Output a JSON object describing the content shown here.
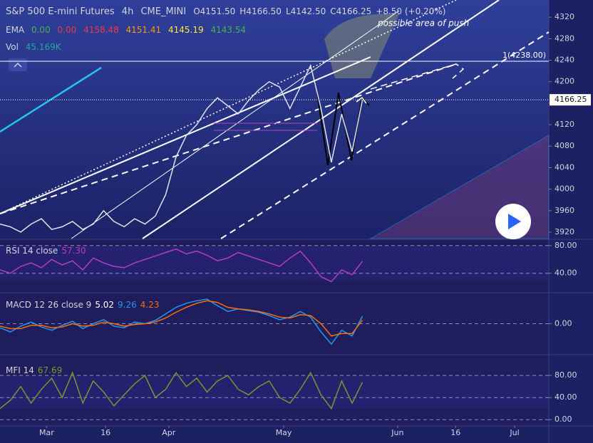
{
  "chart_data": [
    {
      "type": "line",
      "title": "S&P 500 E-mini Futures",
      "interval": "4h",
      "exchange": "CME_MINI",
      "ohlc": [
        "O4151.50",
        "H4166.50",
        "L4142.50",
        "C4166.25"
      ],
      "change": "+8.50 (+0.20%)",
      "ema_label": "EMA",
      "ema_values": [
        "0.00",
        "0.00",
        "4158.48",
        "4151.41",
        "4145.19",
        "4143.54"
      ],
      "vol_label": "Vol",
      "vol_value": "45.169K",
      "annotation": "possible area of push",
      "level": {
        "value": 4238,
        "label": "1(4238.00)"
      },
      "last_price": 4166.25,
      "xlim": [
        0,
        53
      ],
      "ylim": [
        3908,
        4352
      ],
      "xticks": [
        {
          "value": 4.5,
          "label": "Mar"
        },
        {
          "value": 10.2,
          "label": "16"
        },
        {
          "value": 16.3,
          "label": "Apr"
        },
        {
          "value": 27.4,
          "label": "May"
        },
        {
          "value": 38.4,
          "label": "Jun"
        },
        {
          "value": 44,
          "label": "16"
        },
        {
          "value": 49.7,
          "label": "Jul"
        }
      ],
      "yticks": [
        3920,
        3960,
        4000,
        4040,
        4080,
        4120,
        4160,
        4200,
        4240,
        4280,
        4320
      ],
      "grid": false,
      "x": [
        0,
        1,
        2,
        3,
        4,
        5,
        6,
        7,
        8,
        9,
        10,
        11,
        12,
        13,
        14,
        15,
        16,
        17,
        18,
        19,
        20,
        21,
        22,
        23,
        24,
        25,
        26,
        27,
        28,
        29,
        30,
        31,
        32,
        33,
        34,
        35
      ],
      "series": [
        {
          "color": "#e0e3eb",
          "values": [
            3935,
            3930,
            3920,
            3935,
            3945,
            3925,
            3930,
            3940,
            3925,
            3935,
            3960,
            3940,
            3930,
            3945,
            3935,
            3950,
            3990,
            4060,
            4100,
            4120,
            4150,
            4170,
            4155,
            4140,
            4165,
            4185,
            4200,
            4190,
            4150,
            4190,
            4230,
            4150,
            4050,
            4140,
            4070,
            4166.25
          ]
        }
      ]
    },
    {
      "type": "line",
      "title": "RSI 14 close",
      "value_text": "57.30",
      "xlim": [
        0,
        53
      ],
      "ylim": [
        13,
        88
      ],
      "grid": true,
      "yticks": [
        {
          "value": 80,
          "label": "80.00"
        },
        {
          "value": 40,
          "label": "40.00"
        }
      ],
      "x": [
        0,
        1,
        2,
        3,
        4,
        5,
        6,
        7,
        8,
        9,
        10,
        11,
        12,
        13,
        14,
        15,
        16,
        17,
        18,
        19,
        20,
        21,
        22,
        23,
        24,
        25,
        26,
        27,
        28,
        29,
        30,
        31,
        32,
        33,
        34,
        35
      ],
      "series": [
        {
          "color": "#b43dbb",
          "values": [
            45,
            40,
            50,
            55,
            48,
            60,
            52,
            58,
            45,
            62,
            55,
            50,
            48,
            55,
            60,
            65,
            70,
            75,
            68,
            72,
            66,
            58,
            62,
            70,
            65,
            60,
            55,
            50,
            62,
            72,
            55,
            35,
            28,
            45,
            38,
            57.3
          ]
        }
      ]
    },
    {
      "type": "line",
      "title": "MACD 12 26 close 9",
      "value_texts": [
        "5.02",
        "9.26",
        "4.23"
      ],
      "xlim": [
        0,
        53
      ],
      "ylim": [
        -37,
        37
      ],
      "grid": true,
      "yticks": [
        {
          "value": 0,
          "label": "0.00"
        }
      ],
      "x": [
        0,
        1,
        2,
        3,
        4,
        5,
        6,
        7,
        8,
        9,
        10,
        11,
        12,
        13,
        14,
        15,
        16,
        17,
        18,
        19,
        20,
        21,
        22,
        23,
        24,
        25,
        26,
        27,
        28,
        29,
        30,
        31,
        32,
        33,
        34,
        35
      ],
      "series": [
        {
          "color": "#2196f3",
          "values": [
            -5,
            -10,
            -3,
            2,
            -4,
            -8,
            -2,
            3,
            -6,
            0,
            5,
            -3,
            -5,
            2,
            0,
            4,
            12,
            20,
            25,
            28,
            30,
            22,
            15,
            18,
            16,
            14,
            10,
            5,
            8,
            15,
            8,
            -10,
            -25,
            -8,
            -15,
            9.26
          ]
        },
        {
          "color": "#ff6d00",
          "values": [
            -3,
            -6,
            -6,
            -2,
            -2,
            -5,
            -4,
            0,
            -3,
            -2,
            2,
            0,
            -3,
            -1,
            0,
            2,
            7,
            14,
            20,
            25,
            28,
            26,
            20,
            18,
            17,
            15,
            12,
            8,
            7,
            11,
            10,
            0,
            -15,
            -12,
            -12,
            4.23
          ]
        }
      ]
    },
    {
      "type": "line",
      "title": "MFI 14",
      "value_text": "67.69",
      "xlim": [
        0,
        53
      ],
      "ylim": [
        -10,
        115
      ],
      "grid": true,
      "yticks": [
        {
          "value": 80,
          "label": "80.00"
        },
        {
          "value": 40,
          "label": "40.00"
        },
        {
          "value": 0,
          "label": "0.00"
        }
      ],
      "x": [
        0,
        1,
        2,
        3,
        4,
        5,
        6,
        7,
        8,
        9,
        10,
        11,
        12,
        13,
        14,
        15,
        16,
        17,
        18,
        19,
        20,
        21,
        22,
        23,
        24,
        25,
        26,
        27,
        28,
        29,
        30,
        31,
        32,
        33,
        34,
        35
      ],
      "series": [
        {
          "color": "#6f9a2e",
          "values": [
            20,
            35,
            60,
            30,
            55,
            75,
            40,
            85,
            30,
            70,
            50,
            25,
            45,
            65,
            80,
            40,
            55,
            85,
            60,
            75,
            50,
            70,
            80,
            55,
            45,
            60,
            70,
            40,
            30,
            55,
            85,
            45,
            20,
            70,
            30,
            67.69
          ]
        }
      ]
    }
  ]
}
